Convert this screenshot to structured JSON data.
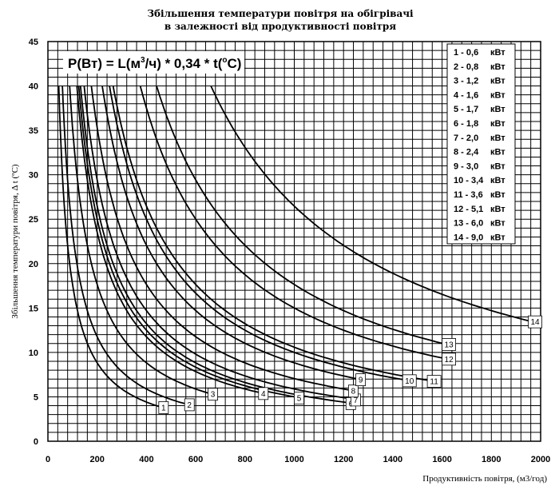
{
  "chart_data": {
    "type": "line",
    "title_line1": "Збільшення температури повітря на обігрівачі",
    "title_line2": "в залежності від продуктивності повітря",
    "xlabel": "Продуктивність повітря, (м3/год)",
    "ylabel": "Збільшення температури повітря, Δ t (ºC)",
    "formula": {
      "prefix": "P(Вт) = L(м",
      "sup1": "3",
      "middle": "/ч) * 0,34 * t(",
      "sup2": "o",
      "suffix": "C)"
    },
    "xlim": [
      0,
      2000
    ],
    "ylim": [
      0,
      45
    ],
    "x_ticks": [
      "0",
      "200",
      "400",
      "600",
      "800",
      "1000",
      "1200",
      "1400",
      "1600",
      "1800",
      "2000"
    ],
    "y_ticks": [
      "0",
      "5",
      "10",
      "15",
      "20",
      "25",
      "30",
      "35",
      "40",
      "45"
    ],
    "grid": true,
    "legend_position": "top-right",
    "legend_unit": "кВт",
    "y_max_curve": 40,
    "series": [
      {
        "name": "1",
        "power_kw": "0,6",
        "power": 0.6,
        "x_end": 450,
        "label": "1"
      },
      {
        "name": "2",
        "power_kw": "0,8",
        "power": 0.8,
        "x_end": 555,
        "label": "2"
      },
      {
        "name": "3",
        "power_kw": "1,2",
        "power": 1.2,
        "x_end": 650,
        "label": "3"
      },
      {
        "name": "4",
        "power_kw": "1,6",
        "power": 1.6,
        "x_end": 855,
        "label": "4"
      },
      {
        "name": "5",
        "power_kw": "1,7",
        "power": 1.7,
        "x_end": 1000,
        "label": "5"
      },
      {
        "name": "6",
        "power_kw": "1,8",
        "power": 1.8,
        "x_end": 1210,
        "label": "6"
      },
      {
        "name": "7",
        "power_kw": "2,0",
        "power": 2.0,
        "x_end": 1230,
        "label": "7"
      },
      {
        "name": "8",
        "power_kw": "2,4",
        "power": 2.4,
        "x_end": 1220,
        "label": "8"
      },
      {
        "name": "9",
        "power_kw": "3,0",
        "power": 3.0,
        "x_end": 1250,
        "label": "9"
      },
      {
        "name": "10",
        "power_kw": "3,4",
        "power": 3.4,
        "x_end": 1440,
        "label": "10"
      },
      {
        "name": "11",
        "power_kw": "3,6",
        "power": 3.6,
        "x_end": 1540,
        "label": "11"
      },
      {
        "name": "12",
        "power_kw": "5,1",
        "power": 5.1,
        "x_end": 1600,
        "label": "12"
      },
      {
        "name": "13",
        "power_kw": "6,0",
        "power": 6.0,
        "x_end": 1600,
        "label": "13"
      },
      {
        "name": "14",
        "power_kw": "9,0",
        "power": 9.0,
        "x_end": 1950,
        "label": "14"
      }
    ]
  }
}
